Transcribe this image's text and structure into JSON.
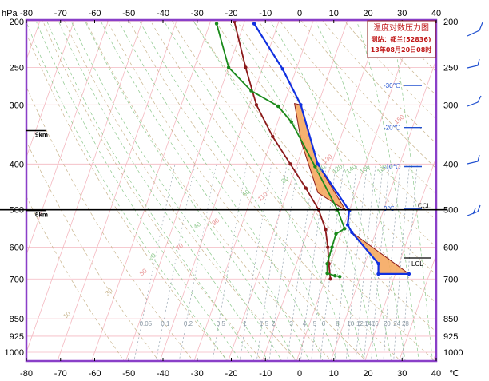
{
  "chart_data": {
    "type": "skew-t log-p sounding",
    "p_unit": "hPa",
    "t_unit": "℃",
    "x_ticks": [
      -80,
      -70,
      -60,
      -50,
      -40,
      -30,
      -20,
      -10,
      0,
      10,
      20,
      30,
      40
    ],
    "p_ticks": [
      200,
      250,
      300,
      400,
      500,
      600,
      700,
      850,
      925,
      1000
    ],
    "xlim": [
      -80,
      40
    ],
    "ylim": [
      1050,
      200
    ],
    "info_box": {
      "title": "温度对数压力图",
      "station": "测站：都兰(52836)",
      "time": "13年08月20日08时"
    },
    "heights": [
      {
        "label": "9km",
        "p": 340
      },
      {
        "label": "6km",
        "p": 502
      }
    ],
    "levels": [
      {
        "label": "CCL",
        "p": 500
      },
      {
        "label": "LCL",
        "p": 632
      }
    ],
    "isotherm_labels": [
      {
        "label": "-30℃",
        "p": 273
      },
      {
        "label": "-20℃",
        "p": 335
      },
      {
        "label": "-10℃",
        "p": 405
      },
      {
        "label": "0℃",
        "p": 497
      }
    ],
    "mixing_ratio_labels": [
      "0.05",
      "0.1",
      "0.2",
      "0.5",
      "1",
      "1.5",
      "2",
      "3",
      "4",
      "5",
      "6",
      "8",
      "10",
      "12",
      "14",
      "16",
      "20",
      "24",
      "28"
    ],
    "adiabat_labels": [
      "100",
      "120",
      "140",
      "160",
      "180",
      "20",
      "40",
      "60",
      "80",
      "10",
      "30",
      "50",
      "70",
      "90",
      "110",
      "130",
      "150"
    ],
    "series": [
      {
        "name": "temperature",
        "color": "#8b1a1a",
        "points": [
          [
            1.5,
            700
          ],
          [
            -0.5,
            650
          ],
          [
            -2.5,
            600
          ],
          [
            -5,
            550
          ],
          [
            -9,
            500
          ],
          [
            -15,
            450
          ],
          [
            -22,
            400
          ],
          [
            -30,
            350
          ],
          [
            -38,
            300
          ],
          [
            -45,
            250
          ],
          [
            -53,
            200
          ]
        ]
      },
      {
        "name": "dewpoint",
        "color": "#1a8a1a",
        "points": [
          [
            4,
            692
          ],
          [
            2.5,
            689
          ],
          [
            0,
            681
          ],
          [
            -1,
            650
          ],
          [
            -1.3,
            600
          ],
          [
            -1.5,
            562
          ],
          [
            0.5,
            548
          ],
          [
            -3.5,
            500
          ],
          [
            -14.5,
            405
          ],
          [
            -26,
            326
          ],
          [
            -31.5,
            302
          ],
          [
            -41,
            280
          ],
          [
            -50,
            250
          ],
          [
            -58,
            202
          ]
        ]
      },
      {
        "name": "parcel",
        "color": "#1030e0",
        "points": [
          [
            24,
            683
          ],
          [
            15,
            683
          ],
          [
            14,
            650
          ],
          [
            3,
            558
          ],
          [
            1,
            538
          ],
          [
            0,
            502
          ],
          [
            -14,
            400
          ],
          [
            -25,
            300
          ],
          [
            -34,
            252
          ],
          [
            -47,
            202
          ]
        ]
      }
    ],
    "cape_areas": [
      {
        "color": "#f5a860",
        "points": [
          [
            3,
            558
          ],
          [
            24,
            683
          ],
          [
            15,
            683
          ],
          [
            14,
            650
          ]
        ]
      },
      {
        "color": "#f5a860",
        "points": [
          [
            -1,
            502
          ],
          [
            -14,
            400
          ],
          [
            -25,
            300
          ],
          [
            -27,
            298
          ],
          [
            -21,
            360
          ],
          [
            -11,
            460
          ]
        ]
      }
    ]
  }
}
